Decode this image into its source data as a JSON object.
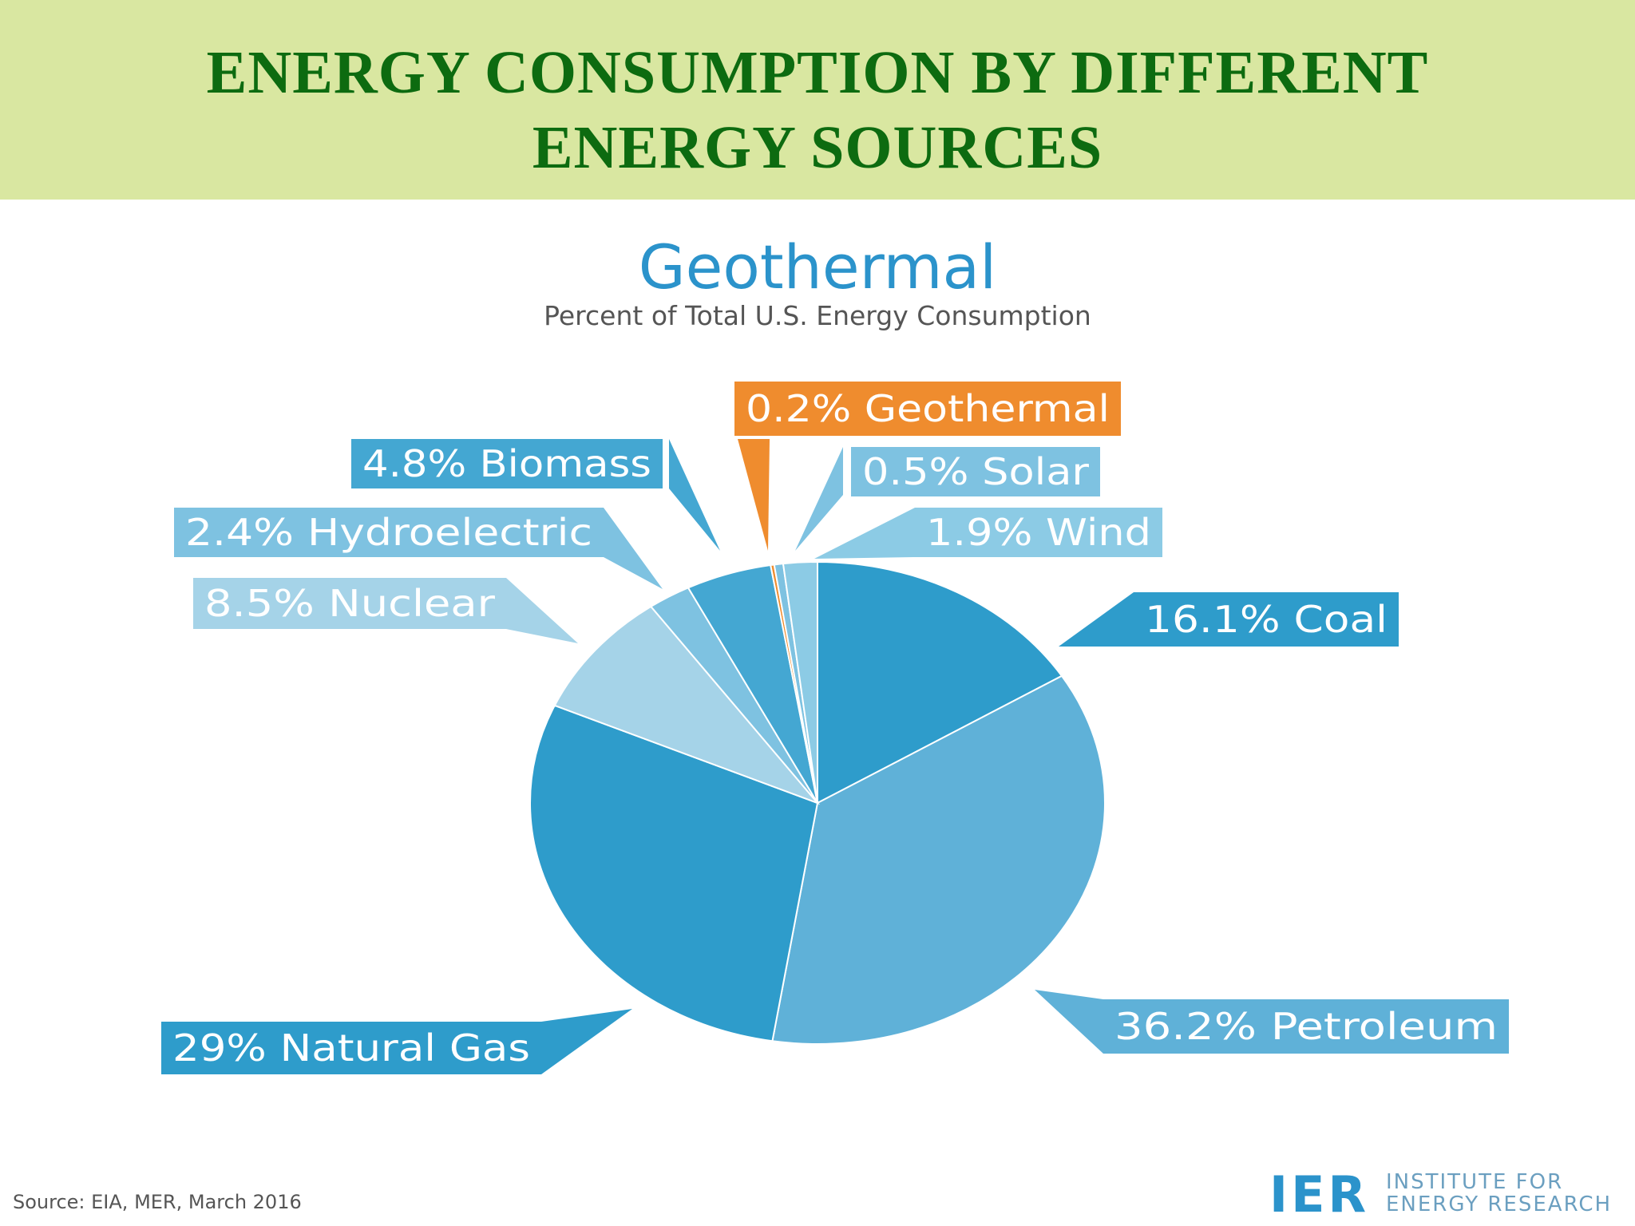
{
  "slide": {
    "title_line1": "ENERGY CONSUMPTION BY DIFFERENT",
    "title_line2": "ENERGY SOURCES"
  },
  "chart_data": {
    "type": "pie",
    "title": "Geothermal",
    "subtitle": "Percent of Total U.S. Energy Consumption",
    "slices": [
      {
        "label": "16.1% Coal",
        "value": 16.1,
        "color": "#2e9ccb"
      },
      {
        "label": "36.2% Petroleum",
        "value": 36.2,
        "color": "#5fb1d8"
      },
      {
        "label": "29% Natural Gas",
        "value": 29.0,
        "color": "#2e9ccb"
      },
      {
        "label": "8.5% Nuclear",
        "value": 8.5,
        "color": "#a5d3e8"
      },
      {
        "label": "2.4% Hydroelectric",
        "value": 2.4,
        "color": "#7ec2e1"
      },
      {
        "label": "4.8% Biomass",
        "value": 4.8,
        "color": "#44a7d2"
      },
      {
        "label": "0.2% Geothermal",
        "value": 0.2,
        "color": "#ef8c2e"
      },
      {
        "label": "0.5% Solar",
        "value": 0.5,
        "color": "#7ec2e1"
      },
      {
        "label": "1.9% Wind",
        "value": 1.9,
        "color": "#8ccbe5"
      }
    ],
    "label_colors": {
      "Coal": "#2e9ccb",
      "Petroleum": "#5fb1d8",
      "Natural Gas": "#2e9ccb",
      "Nuclear": "#a5d3e8",
      "Hydroelectric": "#7ec2e1",
      "Biomass": "#44a7d2",
      "Geothermal": "#ef8c2e",
      "Solar": "#7ec2e1",
      "Wind": "#8ccbe5"
    }
  },
  "footer": {
    "source": "Source: EIA, MER, March 2016",
    "logo_mark": "IER",
    "logo_line1": "INSTITUTE FOR",
    "logo_line2": "ENERGY RESEARCH"
  }
}
